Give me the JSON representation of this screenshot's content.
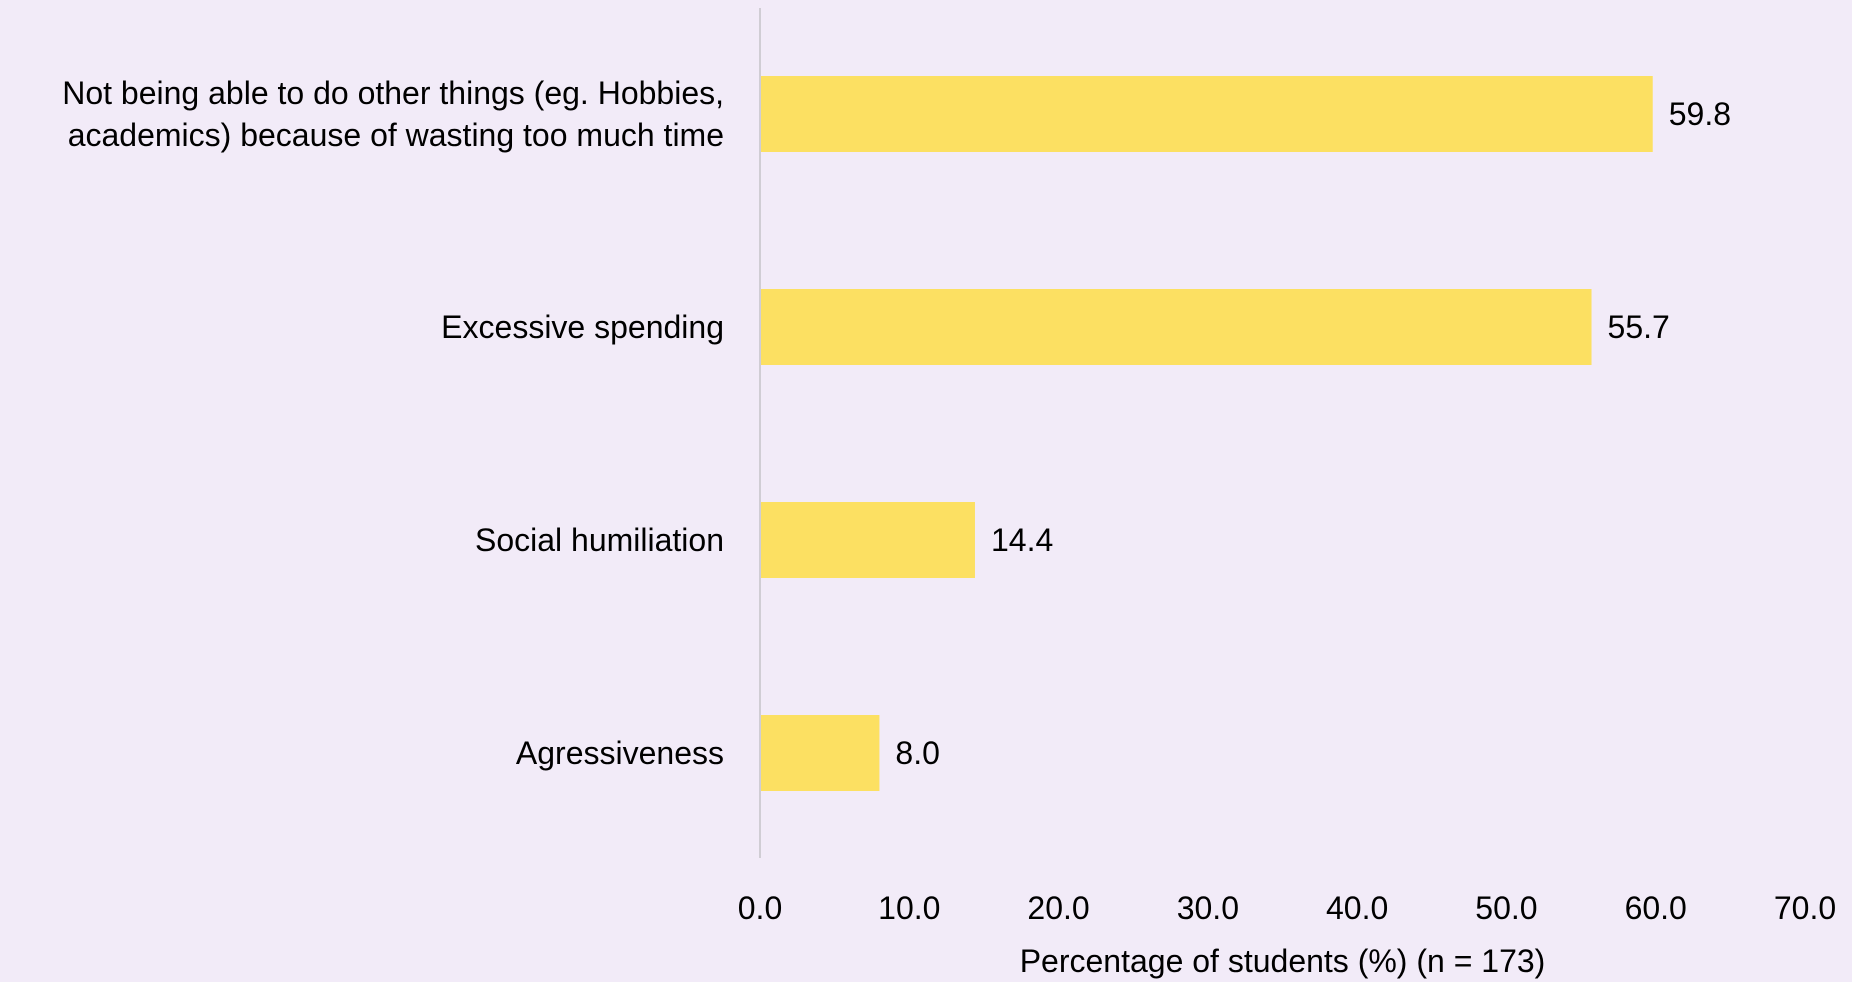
{
  "chart_data": {
    "type": "bar",
    "orientation": "horizontal",
    "categories": [
      [
        "Not being able to do other things (eg. Hobbies,",
        "academics) because of wasting too much time"
      ],
      [
        "Excessive spending"
      ],
      [
        "Social humiliation"
      ],
      [
        "Agressiveness"
      ]
    ],
    "values": [
      59.8,
      55.7,
      14.4,
      8.0
    ],
    "value_labels": [
      "59.8",
      "55.7",
      "14.4",
      "8.0"
    ],
    "xlim": [
      0,
      70
    ],
    "xticks": [
      0,
      10,
      20,
      30,
      40,
      50,
      60,
      70
    ],
    "xtick_labels": [
      "0.0",
      "10.0",
      "20.0",
      "30.0",
      "40.0",
      "50.0",
      "60.0",
      "70.0"
    ],
    "xlabel": "Percentage of students (%) (n = 173)",
    "ylabel": "",
    "title": "",
    "grid": false,
    "legend": "none",
    "colors": {
      "bar": "#fce062",
      "background": "#f2ebf8",
      "axis": "#d0cdd4",
      "text": "#000000"
    }
  }
}
